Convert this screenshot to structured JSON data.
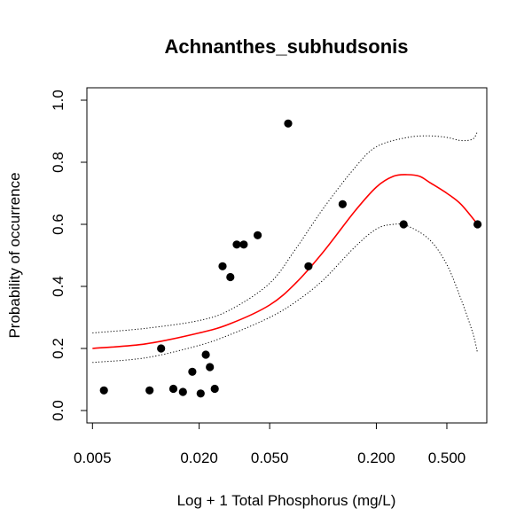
{
  "chart_data": {
    "type": "scatter",
    "title": "Achnanthes_subhudsonis",
    "xlabel": "Log + 1 Total Phosphorus (mg/L)",
    "ylabel": "Probability of occurrence",
    "x_scale": "log",
    "xlim": [
      0.005,
      0.8
    ],
    "ylim": [
      0.0,
      1.0
    ],
    "x_ticks": [
      0.005,
      0.02,
      0.05,
      0.2,
      0.5
    ],
    "x_tick_labels": [
      "0.005",
      "0.020",
      "0.050",
      "0.200",
      "0.500"
    ],
    "y_ticks": [
      0.0,
      0.2,
      0.4,
      0.6,
      0.8,
      1.0
    ],
    "y_tick_labels": [
      "0.0",
      "0.2",
      "0.4",
      "0.6",
      "0.8",
      "1.0"
    ],
    "grid": false,
    "colors": {
      "points": "#000000",
      "fit": "#ff0000",
      "ci": "#000000"
    },
    "series": [
      {
        "style": "points",
        "x": [
          0.0058,
          0.0105,
          0.0122,
          0.0143,
          0.0162,
          0.0183,
          0.0204,
          0.0218,
          0.023,
          0.0245,
          0.0271,
          0.03,
          0.0326,
          0.0357,
          0.0428,
          0.0636,
          0.0828,
          0.129,
          0.285,
          0.745
        ],
        "y": [
          0.065,
          0.065,
          0.2,
          0.07,
          0.06,
          0.125,
          0.055,
          0.18,
          0.14,
          0.07,
          0.465,
          0.43,
          0.535,
          0.535,
          0.565,
          0.925,
          0.465,
          0.665,
          0.6,
          0.6
        ]
      },
      {
        "style": "fit",
        "x": [
          0.005,
          0.01,
          0.02,
          0.03,
          0.05,
          0.07,
          0.1,
          0.15,
          0.2,
          0.25,
          0.3,
          0.35,
          0.4,
          0.5,
          0.6,
          0.745
        ],
        "y": [
          0.2,
          0.215,
          0.25,
          0.28,
          0.34,
          0.41,
          0.51,
          0.64,
          0.72,
          0.755,
          0.76,
          0.755,
          0.735,
          0.7,
          0.665,
          0.6
        ]
      },
      {
        "style": "ci-upper",
        "x": [
          0.005,
          0.01,
          0.02,
          0.03,
          0.05,
          0.07,
          0.1,
          0.15,
          0.2,
          0.3,
          0.4,
          0.5,
          0.6,
          0.7,
          0.745
        ],
        "y": [
          0.25,
          0.265,
          0.29,
          0.325,
          0.41,
          0.52,
          0.65,
          0.78,
          0.85,
          0.88,
          0.885,
          0.88,
          0.87,
          0.875,
          0.9
        ]
      },
      {
        "style": "ci-lower",
        "x": [
          0.005,
          0.01,
          0.02,
          0.03,
          0.05,
          0.07,
          0.1,
          0.15,
          0.2,
          0.25,
          0.3,
          0.4,
          0.5,
          0.6,
          0.7,
          0.745
        ],
        "y": [
          0.155,
          0.17,
          0.21,
          0.245,
          0.3,
          0.35,
          0.42,
          0.525,
          0.585,
          0.6,
          0.595,
          0.55,
          0.47,
          0.36,
          0.25,
          0.185
        ]
      }
    ]
  }
}
